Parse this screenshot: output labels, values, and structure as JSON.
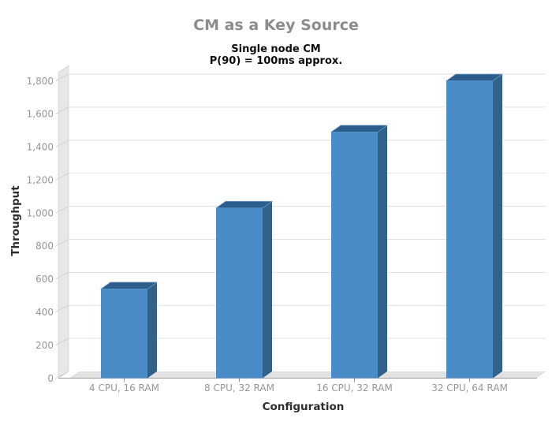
{
  "chart_data": {
    "type": "bar",
    "style": "3d-column",
    "title": "CM as a Key Source",
    "subtitle_lines": [
      "Single node CM",
      "P(90) = 100ms approx."
    ],
    "categories": [
      "4 CPU, 16 RAM",
      "8 CPU, 32 RAM",
      "16 CPU, 32 RAM",
      "32 CPU, 64 RAM"
    ],
    "series": [
      {
        "name": "Throughput",
        "values": [
          540,
          1030,
          1490,
          1800
        ]
      }
    ],
    "xlabel": "Configuration",
    "ylabel": "Throughput",
    "ylim": [
      0,
      1800
    ],
    "ytick_interval": 200,
    "ytick_labels": [
      "0",
      "200",
      "400",
      "600",
      "800",
      "1,000",
      "1,200",
      "1,400",
      "1,600",
      "1,800"
    ],
    "grid": true,
    "legend_position": "none",
    "colors": {
      "bar_front": "#498CC8",
      "bar_side": "#336289",
      "bar_top": "#2D5E8B",
      "bar_top_highlight": "#6FA0CE",
      "wall": "#e7e7e7",
      "wall_edge": "#d2d2d2",
      "floor": "#e2e2e2",
      "gridline": "#e2e2e2",
      "tick_connector": "#cccccc",
      "axis_line": "#999999",
      "tick_label": "#979797",
      "title": "#8c8c8c",
      "subtitle": "#0d0d0d",
      "axis_title": "#2e2e2e"
    }
  }
}
